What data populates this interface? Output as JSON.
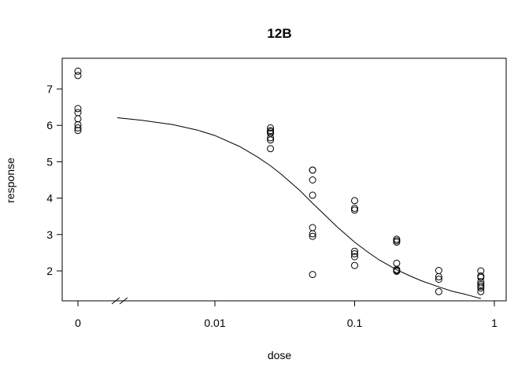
{
  "chart_data": {
    "type": "scatter",
    "title": "12B",
    "xlabel": "dose",
    "ylabel": "response",
    "x_scale": "log",
    "x_axis_break": true,
    "xlim": [
      0.0007,
      1.0
    ],
    "ylim": [
      1.25,
      7.7
    ],
    "x_ticks": [
      {
        "value": 0,
        "label": "0"
      },
      {
        "value": 0.01,
        "label": "0.01"
      },
      {
        "value": 0.1,
        "label": "0.1"
      },
      {
        "value": 1,
        "label": "1"
      }
    ],
    "y_ticks": [
      2,
      3,
      4,
      5,
      6,
      7
    ],
    "grid": false,
    "legend": "none",
    "points": [
      {
        "x": 0,
        "y": 7.49
      },
      {
        "x": 0,
        "y": 7.37
      },
      {
        "x": 0,
        "y": 6.46
      },
      {
        "x": 0,
        "y": 6.35
      },
      {
        "x": 0,
        "y": 6.18
      },
      {
        "x": 0,
        "y": 6.02
      },
      {
        "x": 0,
        "y": 5.93
      },
      {
        "x": 0,
        "y": 5.86
      },
      {
        "x": 0.025,
        "y": 5.93
      },
      {
        "x": 0.025,
        "y": 5.86
      },
      {
        "x": 0.025,
        "y": 5.82
      },
      {
        "x": 0.025,
        "y": 5.78
      },
      {
        "x": 0.025,
        "y": 5.66
      },
      {
        "x": 0.025,
        "y": 5.6
      },
      {
        "x": 0.025,
        "y": 5.36
      },
      {
        "x": 0.05,
        "y": 4.77
      },
      {
        "x": 0.05,
        "y": 4.77
      },
      {
        "x": 0.05,
        "y": 4.5
      },
      {
        "x": 0.05,
        "y": 4.08
      },
      {
        "x": 0.05,
        "y": 3.19
      },
      {
        "x": 0.05,
        "y": 3.02
      },
      {
        "x": 0.05,
        "y": 2.95
      },
      {
        "x": 0.05,
        "y": 1.9
      },
      {
        "x": 0.1,
        "y": 3.93
      },
      {
        "x": 0.1,
        "y": 3.72
      },
      {
        "x": 0.1,
        "y": 3.67
      },
      {
        "x": 0.1,
        "y": 2.54
      },
      {
        "x": 0.1,
        "y": 2.47
      },
      {
        "x": 0.1,
        "y": 2.39
      },
      {
        "x": 0.1,
        "y": 2.15
      },
      {
        "x": 0.2,
        "y": 2.87
      },
      {
        "x": 0.2,
        "y": 2.83
      },
      {
        "x": 0.2,
        "y": 2.79
      },
      {
        "x": 0.2,
        "y": 2.21
      },
      {
        "x": 0.2,
        "y": 2.04
      },
      {
        "x": 0.2,
        "y": 2.01
      },
      {
        "x": 0.2,
        "y": 1.99
      },
      {
        "x": 0.4,
        "y": 2.01
      },
      {
        "x": 0.4,
        "y": 1.84
      },
      {
        "x": 0.4,
        "y": 1.77
      },
      {
        "x": 0.4,
        "y": 1.43
      },
      {
        "x": 0.8,
        "y": 2.0
      },
      {
        "x": 0.8,
        "y": 1.86
      },
      {
        "x": 0.8,
        "y": 1.82
      },
      {
        "x": 0.8,
        "y": 1.7
      },
      {
        "x": 0.8,
        "y": 1.63
      },
      {
        "x": 0.8,
        "y": 1.58
      },
      {
        "x": 0.8,
        "y": 1.53
      },
      {
        "x": 0.8,
        "y": 1.43
      }
    ],
    "fitted_curve": {
      "x": [
        0.002,
        0.003,
        0.005,
        0.0075,
        0.01,
        0.015,
        0.02,
        0.025,
        0.03,
        0.04,
        0.05,
        0.06,
        0.075,
        0.1,
        0.125,
        0.15,
        0.2,
        0.25,
        0.3,
        0.4,
        0.5,
        0.6,
        0.7,
        0.8
      ],
      "y": [
        6.21,
        6.14,
        6.02,
        5.87,
        5.72,
        5.42,
        5.14,
        4.89,
        4.65,
        4.23,
        3.86,
        3.57,
        3.21,
        2.79,
        2.51,
        2.3,
        2.03,
        1.86,
        1.73,
        1.56,
        1.44,
        1.37,
        1.3,
        1.24
      ]
    }
  }
}
